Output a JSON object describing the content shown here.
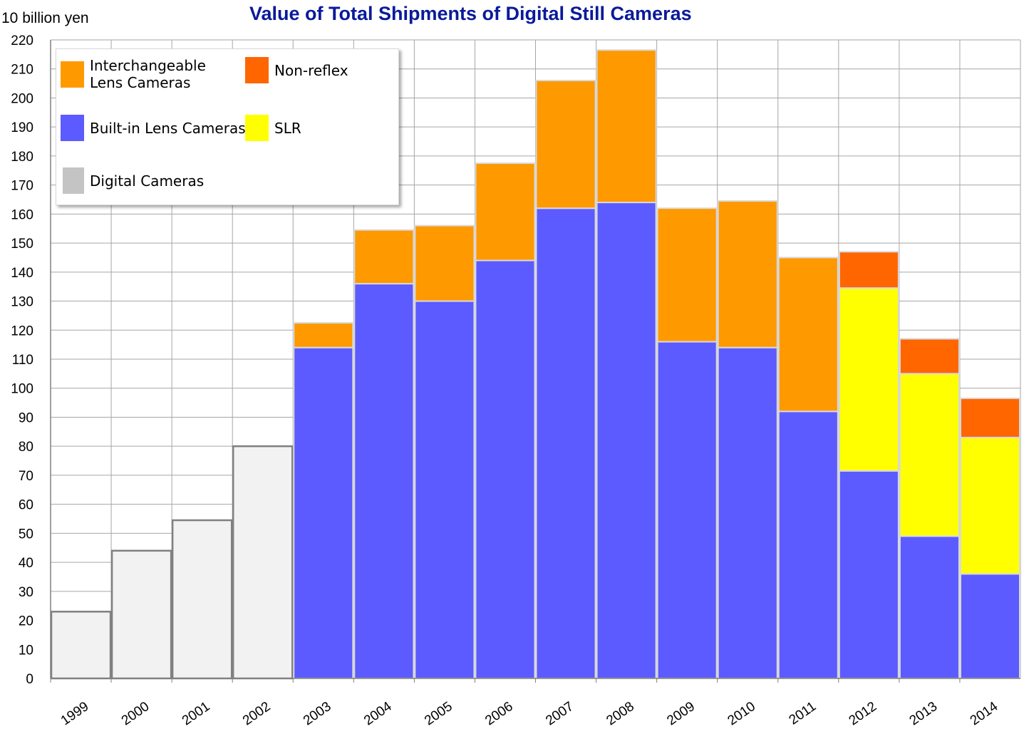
{
  "title": "Value of Total Shipments of Digital Still Cameras",
  "y_unit": "10 billion yen",
  "colors": {
    "digital": "#f2f2f2",
    "builtin": "#5b5bff",
    "interchangeable": "#ff9900",
    "slr": "#ffff00",
    "nonreflex": "#ff6600",
    "grid": "#a6a6a6"
  },
  "legend": [
    {
      "key": "interchangeable",
      "label": "Interchangeable Lens Cameras"
    },
    {
      "key": "nonreflex",
      "label": "Non-reflex"
    },
    {
      "key": "builtin",
      "label": "Built-in Lens Cameras"
    },
    {
      "key": "slr",
      "label": "SLR"
    },
    {
      "key": "digital",
      "label": "Digital Cameras"
    }
  ],
  "chart_data": {
    "type": "bar",
    "stacked": true,
    "title": "Value of Total Shipments of Digital Still Cameras",
    "ylabel": "10 billion yen",
    "xlabel": "",
    "ylim": [
      0,
      220
    ],
    "yticks": [
      0,
      10,
      20,
      30,
      40,
      50,
      60,
      70,
      80,
      90,
      100,
      110,
      120,
      130,
      140,
      150,
      160,
      170,
      180,
      190,
      200,
      210,
      220
    ],
    "grid": true,
    "legend_position": "top-left",
    "categories": [
      "1999",
      "2000",
      "2001",
      "2002",
      "2003",
      "2004",
      "2005",
      "2006",
      "2007",
      "2008",
      "2009",
      "2010",
      "2011",
      "2012",
      "2013",
      "2014"
    ],
    "series": [
      {
        "name": "Digital Cameras",
        "key": "digital",
        "values": [
          23,
          44,
          54.5,
          80,
          0,
          0,
          0,
          0,
          0,
          0,
          0,
          0,
          0,
          0,
          0,
          0
        ]
      },
      {
        "name": "Built-in Lens Cameras",
        "key": "builtin",
        "values": [
          0,
          0,
          0,
          0,
          114,
          136,
          130,
          144,
          162,
          164,
          116,
          114,
          92,
          71.5,
          49,
          36
        ]
      },
      {
        "name": "SLR",
        "key": "slr",
        "values": [
          0,
          0,
          0,
          0,
          0,
          0,
          0,
          0,
          0,
          0,
          0,
          0,
          0,
          63,
          56,
          47
        ]
      },
      {
        "name": "Interchangeable Lens Cameras",
        "key": "interchangeable",
        "values": [
          0,
          0,
          0,
          0,
          8.5,
          18.5,
          26,
          33.5,
          44,
          52.5,
          46,
          50.5,
          53,
          0,
          0,
          0
        ]
      },
      {
        "name": "Non-reflex",
        "key": "nonreflex",
        "values": [
          0,
          0,
          0,
          0,
          0,
          0,
          0,
          0,
          0,
          0,
          0,
          0,
          0,
          12.5,
          12,
          13.5
        ]
      }
    ]
  }
}
